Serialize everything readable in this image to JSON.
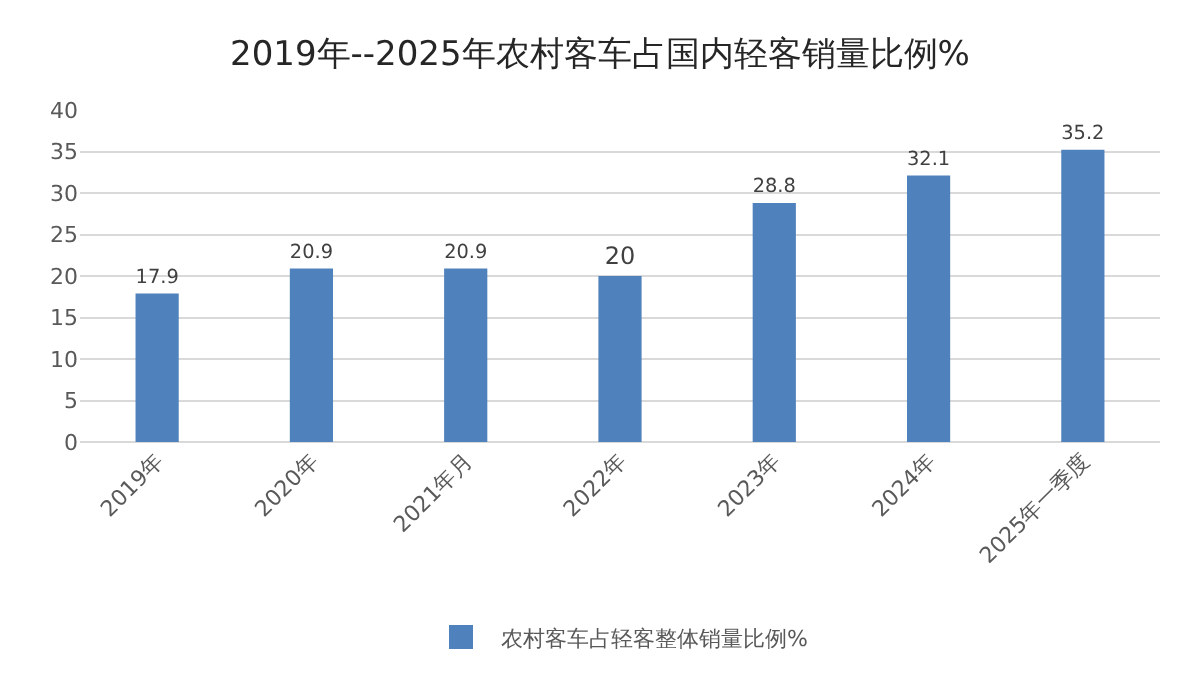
{
  "chart_data": {
    "type": "bar",
    "title": "2019年--2025年农村客车占国内轻客销量比例%",
    "categories": [
      "2019年",
      "2020年",
      "2021年月",
      "2022年",
      "2023年",
      "2024年",
      "2025年一季度"
    ],
    "series": [
      {
        "name": "农村客车占轻客整体销量比例%",
        "color": "#4f81bd",
        "values": [
          17.9,
          20.9,
          20.9,
          20,
          28.8,
          32.1,
          35.2
        ]
      }
    ],
    "ylim": [
      0,
      40
    ],
    "yticks": [
      0,
      5,
      10,
      15,
      20,
      25,
      30,
      35,
      40
    ],
    "grid": "y",
    "legend": "bottom",
    "data_labels": true
  }
}
